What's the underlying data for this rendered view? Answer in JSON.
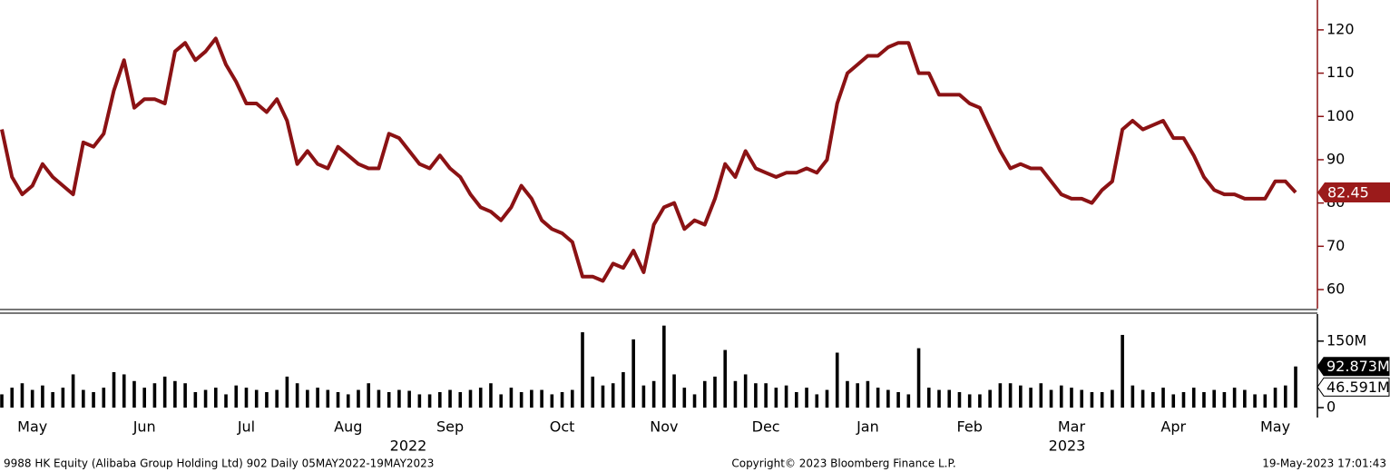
{
  "chart_data": [
    {
      "type": "line",
      "color": "#8b1214",
      "categories": [
        null,
        null,
        null,
        "May",
        null,
        null,
        null,
        null,
        null,
        null,
        null,
        null,
        null,
        null,
        "Jun",
        null,
        null,
        null,
        null,
        null,
        null,
        null,
        null,
        null,
        "Jul",
        null,
        null,
        null,
        null,
        null,
        null,
        null,
        null,
        null,
        "Aug",
        null,
        null,
        null,
        null,
        null,
        null,
        null,
        null,
        null,
        "Sep",
        null,
        null,
        null,
        null,
        null,
        null,
        null,
        null,
        null,
        null,
        "Oct",
        null,
        null,
        null,
        null,
        null,
        null,
        null,
        null,
        null,
        "Nov",
        null,
        null,
        null,
        null,
        null,
        null,
        null,
        null,
        null,
        "Dec",
        null,
        null,
        null,
        null,
        null,
        null,
        null,
        null,
        null,
        "Jan",
        null,
        null,
        null,
        null,
        null,
        null,
        null,
        null,
        null,
        "Feb",
        null,
        null,
        null,
        null,
        null,
        null,
        null,
        null,
        null,
        "Mar",
        null,
        null,
        null,
        null,
        null,
        null,
        null,
        null,
        null,
        "Apr",
        null,
        null,
        null,
        null,
        null,
        null,
        null,
        null,
        null,
        "May",
        null,
        null
      ],
      "x_group_labels": [
        "2022",
        "2023"
      ],
      "values": [
        97,
        86,
        82,
        84,
        89,
        86,
        84,
        82,
        94,
        93,
        96,
        106,
        113,
        102,
        104,
        104,
        103,
        115,
        117,
        113,
        115,
        118,
        112,
        108,
        103,
        103,
        101,
        104,
        99,
        89,
        92,
        89,
        88,
        93,
        91,
        89,
        88,
        88,
        96,
        95,
        92,
        89,
        88,
        91,
        88,
        86,
        82,
        79,
        78,
        76,
        79,
        84,
        81,
        76,
        74,
        73,
        71,
        63,
        63,
        62,
        66,
        65,
        69,
        64,
        75,
        79,
        80,
        74,
        76,
        75,
        81,
        89,
        86,
        92,
        88,
        87,
        86,
        87,
        87,
        88,
        87,
        90,
        103,
        110,
        112,
        114,
        114,
        116,
        117,
        117,
        110,
        110,
        105,
        105,
        105,
        103,
        102,
        97,
        92,
        88,
        89,
        88,
        88,
        85,
        82,
        81,
        81,
        80,
        83,
        85,
        97,
        99,
        97,
        98,
        99,
        95,
        95,
        91,
        86,
        83,
        82,
        82,
        81,
        81,
        81,
        85,
        85,
        82.45
      ],
      "ylim": [
        55.6,
        126.9
      ],
      "yticks": [
        60,
        70,
        80,
        90,
        100,
        110,
        120
      ]
    },
    {
      "type": "bar",
      "color": "#000000",
      "values": [
        30,
        45,
        55,
        40,
        50,
        35,
        45,
        75,
        40,
        35,
        45,
        80,
        75,
        60,
        45,
        55,
        70,
        60,
        55,
        35,
        40,
        45,
        30,
        50,
        45,
        40,
        35,
        40,
        70,
        55,
        40,
        45,
        40,
        35,
        30,
        40,
        55,
        40,
        35,
        40,
        38,
        30,
        30,
        35,
        40,
        35,
        40,
        45,
        55,
        30,
        45,
        35,
        40,
        40,
        30,
        35,
        40,
        170,
        70,
        50,
        55,
        80,
        154,
        50,
        60,
        185,
        75,
        45,
        30,
        60,
        70,
        130,
        60,
        75,
        55,
        55,
        45,
        50,
        35,
        45,
        30,
        40,
        124,
        60,
        55,
        60,
        45,
        40,
        35,
        30,
        134,
        45,
        40,
        40,
        35,
        30,
        30,
        40,
        55,
        55,
        50,
        45,
        55,
        40,
        50,
        45,
        40,
        35,
        35,
        40,
        164,
        50,
        40,
        35,
        45,
        30,
        35,
        45,
        35,
        40,
        35,
        45,
        40,
        30,
        30,
        45,
        50,
        92.873
      ],
      "tags": [
        {
          "value": 92.873,
          "label": "92.873M"
        },
        {
          "value": 46.591,
          "label": "46.591M"
        }
      ],
      "ylim": [
        -22.3,
        211
      ],
      "yticks": [
        0,
        {
          "value": 150,
          "label": "150M"
        }
      ]
    }
  ],
  "footer": {
    "left": "9988 HK Equity (Alibaba Group Holding Ltd) 902  Daily 05MAY2022-19MAY2023",
    "center": "Copyright© 2023 Bloomberg Finance L.P.",
    "right": "19-May-2023 17:01:43"
  }
}
